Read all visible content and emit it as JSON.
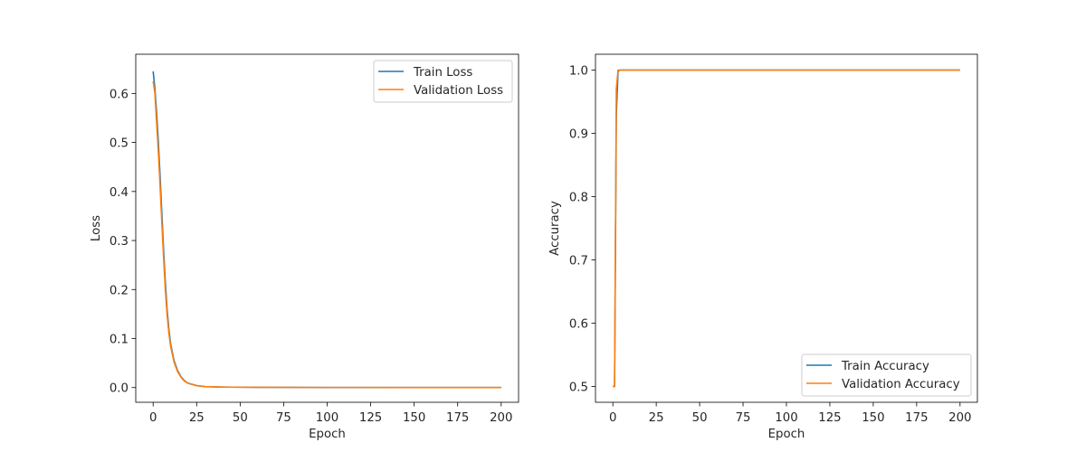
{
  "colors": {
    "train": "#1f77b4",
    "validation": "#ff7f0e"
  },
  "chart_data": [
    {
      "type": "line",
      "title": "",
      "xlabel": "Epoch",
      "ylabel": "Loss",
      "xlim": [
        -10,
        210
      ],
      "ylim": [
        -0.03,
        0.68
      ],
      "xticks": [
        0,
        25,
        50,
        75,
        100,
        125,
        150,
        175,
        200
      ],
      "yticks": [
        0.0,
        0.1,
        0.2,
        0.3,
        0.4,
        0.5,
        0.6
      ],
      "ytick_decimals": 1,
      "grid": false,
      "legend_position": "top-right",
      "series": [
        {
          "name": "Train Loss",
          "color": "#1f77b4",
          "points": [
            [
              0,
              0.645
            ],
            [
              1,
              0.61
            ],
            [
              2,
              0.56
            ],
            [
              3,
              0.5
            ],
            [
              4,
              0.43
            ],
            [
              5,
              0.355
            ],
            [
              6,
              0.28
            ],
            [
              7,
              0.215
            ],
            [
              8,
              0.16
            ],
            [
              9,
              0.12
            ],
            [
              10,
              0.09
            ],
            [
              12,
              0.055
            ],
            [
              14,
              0.035
            ],
            [
              16,
              0.022
            ],
            [
              18,
              0.014
            ],
            [
              20,
              0.009
            ],
            [
              25,
              0.004
            ],
            [
              30,
              0.002
            ],
            [
              40,
              0.001
            ],
            [
              60,
              0.0005
            ],
            [
              100,
              0.0002
            ],
            [
              150,
              0.0001
            ],
            [
              200,
              0.0001
            ]
          ]
        },
        {
          "name": "Validation Loss",
          "color": "#ff7f0e",
          "points": [
            [
              0,
              0.625
            ],
            [
              1,
              0.6
            ],
            [
              2,
              0.54
            ],
            [
              3,
              0.48
            ],
            [
              4,
              0.41
            ],
            [
              5,
              0.335
            ],
            [
              6,
              0.265
            ],
            [
              7,
              0.2
            ],
            [
              8,
              0.15
            ],
            [
              9,
              0.112
            ],
            [
              10,
              0.085
            ],
            [
              12,
              0.052
            ],
            [
              14,
              0.033
            ],
            [
              16,
              0.021
            ],
            [
              18,
              0.013
            ],
            [
              20,
              0.009
            ],
            [
              25,
              0.004
            ],
            [
              30,
              0.002
            ],
            [
              40,
              0.001
            ],
            [
              60,
              0.0005
            ],
            [
              100,
              0.0002
            ],
            [
              150,
              0.0001
            ],
            [
              200,
              0.0001
            ]
          ]
        }
      ]
    },
    {
      "type": "line",
      "title": "",
      "xlabel": "Epoch",
      "ylabel": "Accuracy",
      "xlim": [
        -10,
        210
      ],
      "ylim": [
        0.475,
        1.025
      ],
      "xticks": [
        0,
        25,
        50,
        75,
        100,
        125,
        150,
        175,
        200
      ],
      "yticks": [
        0.5,
        0.6,
        0.7,
        0.8,
        0.9,
        1.0
      ],
      "ytick_decimals": 1,
      "grid": false,
      "legend_position": "bottom-right",
      "series": [
        {
          "name": "Train Accuracy",
          "color": "#1f77b4",
          "points": [
            [
              0,
              0.5
            ],
            [
              1,
              0.5
            ],
            [
              2,
              0.93
            ],
            [
              3,
              0.998
            ],
            [
              4,
              1.0
            ],
            [
              200,
              1.0
            ]
          ]
        },
        {
          "name": "Validation Accuracy",
          "color": "#ff7f0e",
          "points": [
            [
              0,
              0.5
            ],
            [
              1,
              0.5
            ],
            [
              2,
              0.97
            ],
            [
              3,
              1.0
            ],
            [
              200,
              1.0
            ]
          ]
        }
      ]
    }
  ]
}
